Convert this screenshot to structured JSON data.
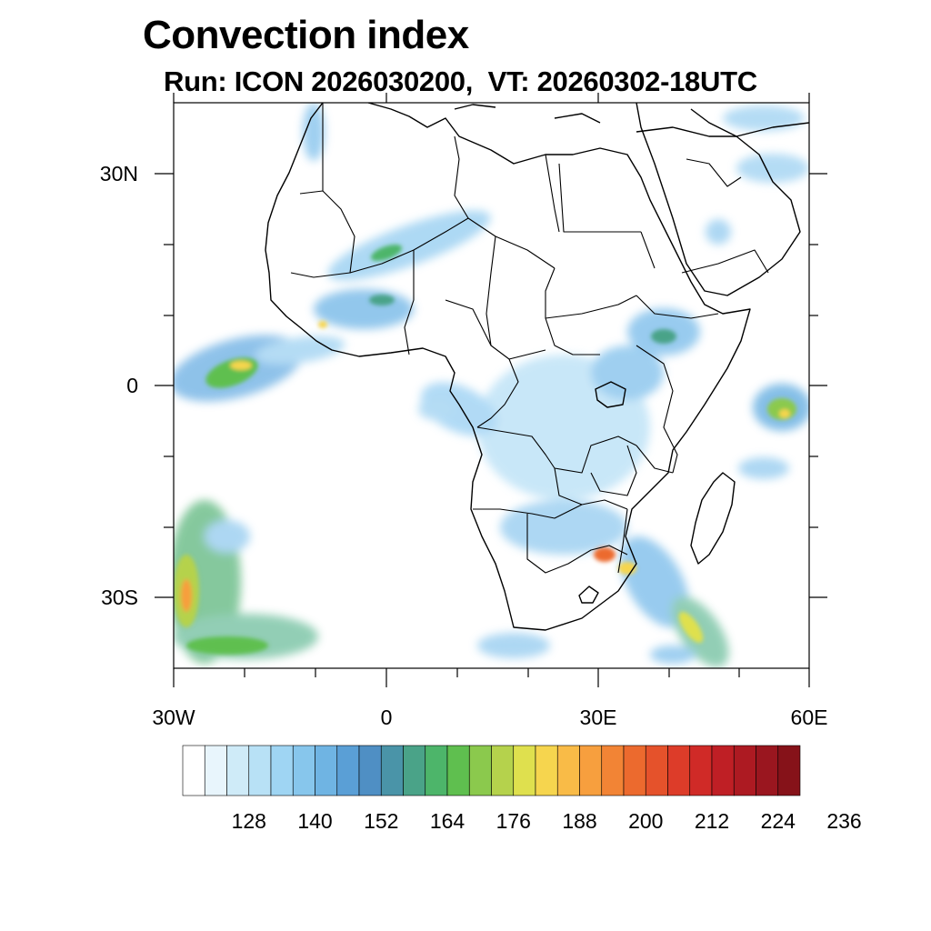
{
  "title": "Convection index",
  "subtitle": "Run: ICON 2026030200,  VT: 20260302-18UTC",
  "map": {
    "extent": {
      "lon": [
        -30,
        60
      ],
      "lat": [
        -40,
        40
      ]
    },
    "lat_labels": [
      "30N",
      "0",
      "30S"
    ],
    "lon_labels": [
      "30W",
      "0",
      "30E",
      "60E"
    ]
  },
  "colorbar": {
    "colors": [
      "#ffffff",
      "#e8f5fc",
      "#cfebf8",
      "#b8e1f6",
      "#9fd5f3",
      "#87c6ec",
      "#6fb4e3",
      "#5a9fd6",
      "#4f8fc4",
      "#4a94a8",
      "#4aa388",
      "#4db56a",
      "#5fbf4f",
      "#8bc94d",
      "#b5d24c",
      "#dfe04e",
      "#f6d54e",
      "#f9bb47",
      "#f79f3e",
      "#f28435",
      "#ec6a2e",
      "#e5522b",
      "#dd3c29",
      "#d02a27",
      "#bf1f25",
      "#ad1a22",
      "#9a161f",
      "#861219"
    ],
    "labels": [
      "128",
      "140",
      "152",
      "164",
      "176",
      "188",
      "200",
      "212",
      "224",
      "236"
    ]
  }
}
